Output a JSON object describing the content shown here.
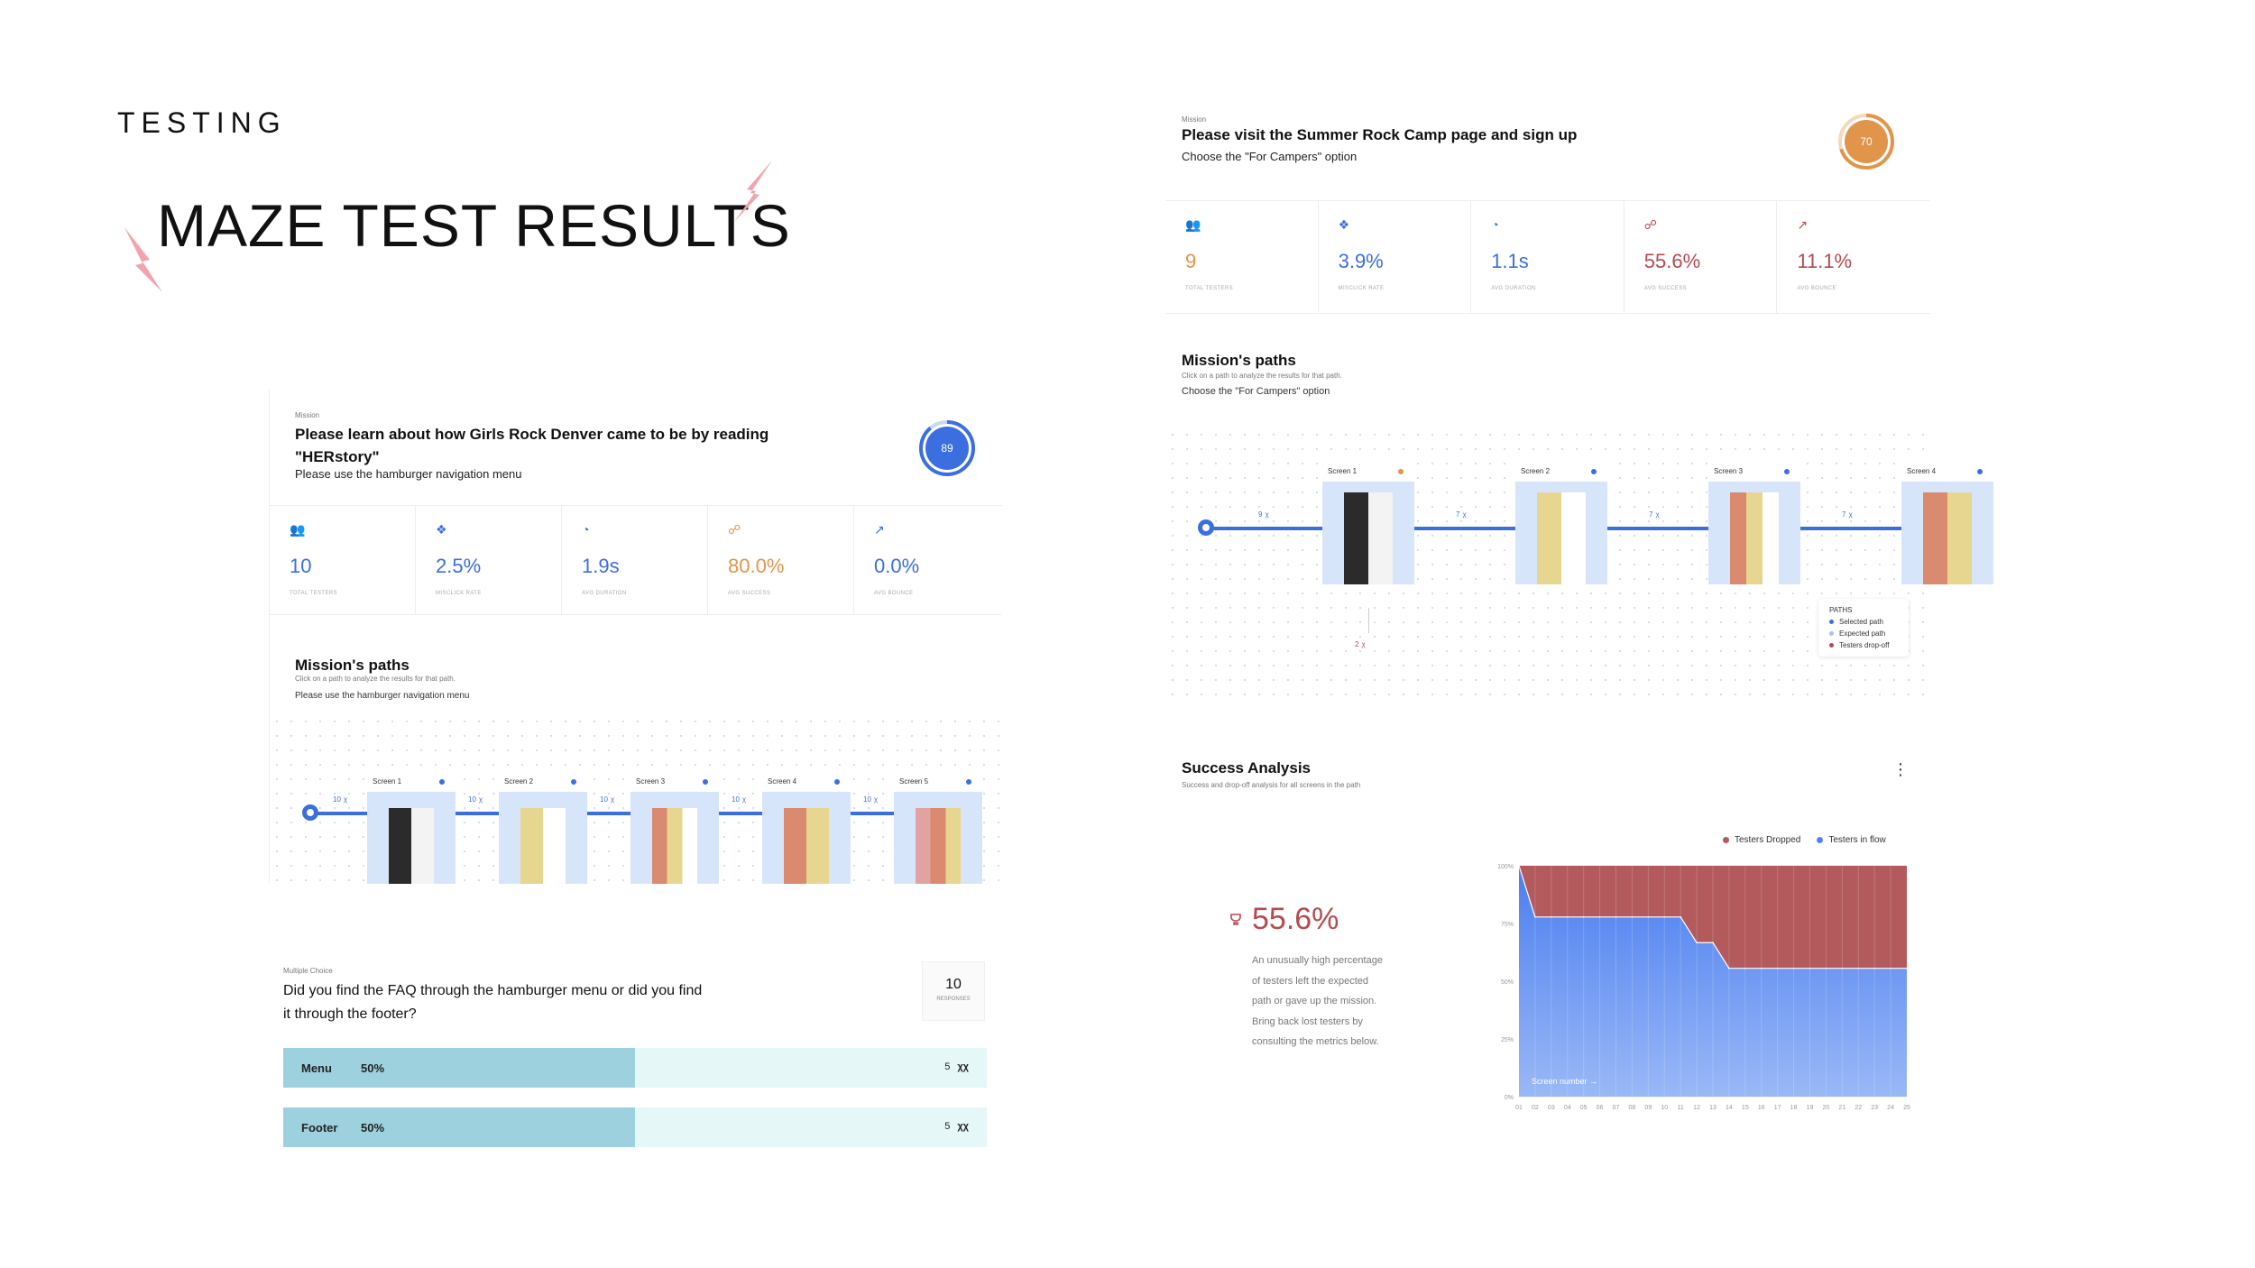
{
  "slide": {
    "eyebrow": "TESTING",
    "title": "MAZE TEST RESULTS"
  },
  "colors": {
    "blue": "#3b6fe0",
    "orange": "#e0954a",
    "red": "#b54a4f",
    "bolt": "#f2a3ad",
    "poll_fill": "#9dd1de",
    "poll_bg": "#e6f7f8"
  },
  "mission_left": {
    "eyebrow": "Mission",
    "title_line1": "Please learn about how Girls Rock Denver came to be by reading",
    "title_line2": "\"HERstory\"",
    "subtitle": "Please use the hamburger navigation menu",
    "score": "89",
    "stats": [
      {
        "icon": "users-icon",
        "value": "10",
        "label": "TOTAL TESTERS",
        "color": "#3b6fe0"
      },
      {
        "icon": "misclick-icon",
        "value": "2.5%",
        "label": "MISCLICK RATE",
        "color": "#3b6fe0"
      },
      {
        "icon": "clock-icon",
        "value": "1.9s",
        "label": "AVG DURATION",
        "color": "#3b6fe0"
      },
      {
        "icon": "trophy-icon",
        "value": "80.0%",
        "label": "AVG SUCCESS",
        "color": "#e0954a"
      },
      {
        "icon": "bounce-icon",
        "value": "0.0%",
        "label": "AVG BOUNCE",
        "color": "#3b6fe0"
      }
    ],
    "paths_title": "Mission's paths",
    "paths_hint": "Click on a path to analyze the results for that path.",
    "paths_subtitle": "Please use the hamburger navigation menu",
    "screens": [
      "Screen 1",
      "Screen 2",
      "Screen 3",
      "Screen 4",
      "Screen 5"
    ],
    "connector_labels": [
      "10",
      "10",
      "10",
      "10",
      "10"
    ]
  },
  "poll": {
    "eyebrow": "Multiple Choice",
    "question_line1": "Did you find the FAQ through the hamburger menu or did you find",
    "question_line2": "it through the footer?",
    "responses": "10",
    "responses_label": "RESPONSES",
    "options": [
      {
        "label": "Menu",
        "percent": "50%",
        "count": "5",
        "fraction": 0.5
      },
      {
        "label": "Footer",
        "percent": "50%",
        "count": "5",
        "fraction": 0.5
      }
    ]
  },
  "mission_right": {
    "eyebrow": "Mission",
    "title": "Please visit the Summer Rock Camp page and sign up",
    "subtitle": "Choose the \"For Campers\" option",
    "score": "70",
    "stats": [
      {
        "icon": "users-icon",
        "value": "9",
        "label": "TOTAL TESTERS",
        "color": "#e0954a"
      },
      {
        "icon": "misclick-icon",
        "value": "3.9%",
        "label": "MISCLICK RATE",
        "color": "#3b6fe0"
      },
      {
        "icon": "clock-icon",
        "value": "1.1s",
        "label": "AVG DURATION",
        "color": "#3b6fe0"
      },
      {
        "icon": "trophy-icon",
        "value": "55.6%",
        "label": "AVG SUCCESS",
        "color": "#b54a4f"
      },
      {
        "icon": "bounce-icon",
        "value": "11.1%",
        "label": "AVG BOUNCE",
        "color": "#b54a4f"
      }
    ],
    "paths_title": "Mission's paths",
    "paths_hint": "Click on a path to analyze the results for that path.",
    "paths_subtitle": "Choose the \"For Campers\" option",
    "screens": [
      "Screen 1",
      "Screen 2",
      "Screen 3",
      "Screen 4"
    ],
    "connector_labels": [
      "9",
      "7",
      "7",
      "7"
    ],
    "drop_label": "2",
    "legend": {
      "title": "PATHS",
      "items": [
        "Selected path",
        "Expected path",
        "Testers drop-off"
      ]
    }
  },
  "success": {
    "title": "Success Analysis",
    "subtitle": "Success and drop-off analysis for all screens in the path",
    "big_value": "55.6%",
    "desc": [
      "An unusually high percentage",
      "of testers left the expected",
      "path or gave up the mission.",
      "Bring back lost testers by",
      "consulting the metrics below."
    ],
    "legend": [
      "Testers Dropped",
      "Testers in flow"
    ],
    "x_axis_label": "Screen number →"
  },
  "chart_data": {
    "type": "area",
    "title": "Success Analysis",
    "xlabel": "Screen number",
    "ylabel": "",
    "ylim": [
      0,
      100
    ],
    "y_ticks": [
      "0%",
      "25%",
      "50%",
      "75%",
      "100%"
    ],
    "x": [
      "01",
      "02",
      "03",
      "04",
      "05",
      "06",
      "07",
      "08",
      "09",
      "10",
      "11",
      "12",
      "13",
      "14",
      "15",
      "16",
      "17",
      "18",
      "19",
      "20",
      "21",
      "22",
      "23",
      "24",
      "25"
    ],
    "series": [
      {
        "name": "Testers in flow",
        "color": "#4f83ef",
        "values": [
          100,
          77.8,
          77.8,
          77.8,
          77.8,
          77.8,
          77.8,
          77.8,
          77.8,
          77.8,
          77.8,
          66.7,
          66.7,
          55.6,
          55.6,
          55.6,
          55.6,
          55.6,
          55.6,
          55.6,
          55.6,
          55.6,
          55.6,
          55.6,
          55.6
        ]
      },
      {
        "name": "Testers Dropped",
        "color": "#b35a5d",
        "values": [
          0,
          22.2,
          22.2,
          22.2,
          22.2,
          22.2,
          22.2,
          22.2,
          22.2,
          22.2,
          22.2,
          33.3,
          33.3,
          44.4,
          44.4,
          44.4,
          44.4,
          44.4,
          44.4,
          44.4,
          44.4,
          44.4,
          44.4,
          44.4,
          44.4
        ]
      }
    ],
    "legend_position": "top-right",
    "grid": true
  }
}
